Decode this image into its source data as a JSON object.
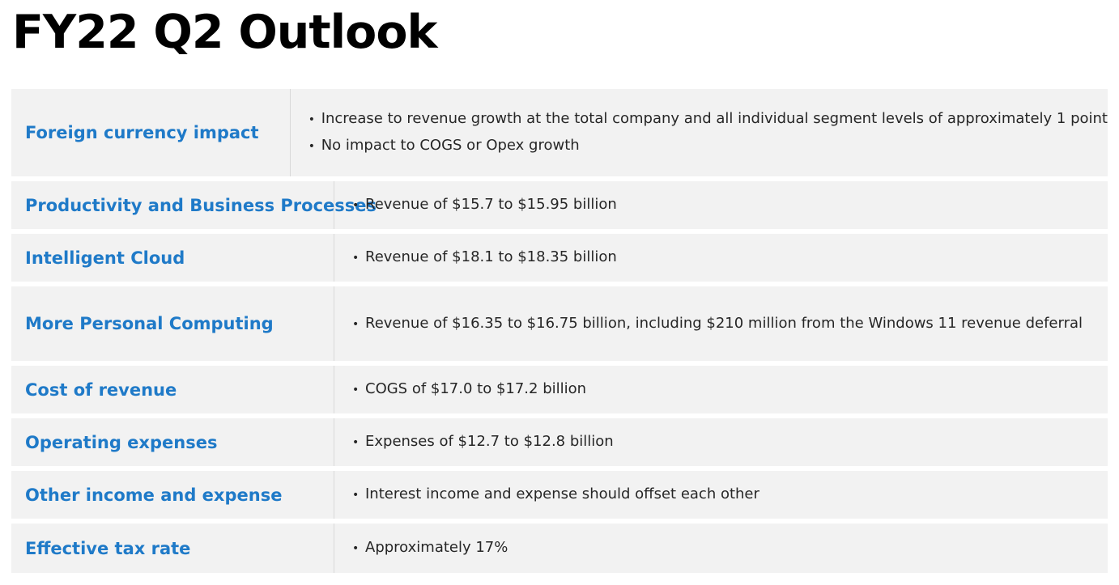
{
  "title": "FY22 Q2 Outlook",
  "rows": [
    {
      "label": "Foreign currency impact",
      "bullets": [
        "Increase to revenue growth at the total company and all individual segment levels of approximately 1 point",
        "No impact to COGS or Opex growth"
      ]
    },
    {
      "label": "Productivity and Business Processes",
      "bullets": [
        "Revenue of $15.7 to $15.95 billion"
      ]
    },
    {
      "label": "Intelligent Cloud",
      "bullets": [
        "Revenue of $18.1 to $18.35 billion"
      ]
    },
    {
      "label": "More Personal Computing",
      "bullets": [
        "Revenue of $16.35 to $16.75 billion, including $210 million from the Windows 11 revenue deferral"
      ]
    },
    {
      "label": "Cost of revenue",
      "bullets": [
        "COGS of $17.0 to $17.2 billion"
      ]
    },
    {
      "label": "Operating expenses",
      "bullets": [
        "Expenses of $12.7 to $12.8 billion"
      ]
    },
    {
      "label": "Other income and expense",
      "bullets": [
        "Interest income and expense should offset each other"
      ]
    },
    {
      "label": "Effective tax rate",
      "bullets": [
        "Approximately 17%"
      ]
    }
  ],
  "colors": {
    "label": "#1f7ac8",
    "row_background": "#f2f2f2",
    "text": "#262626"
  }
}
